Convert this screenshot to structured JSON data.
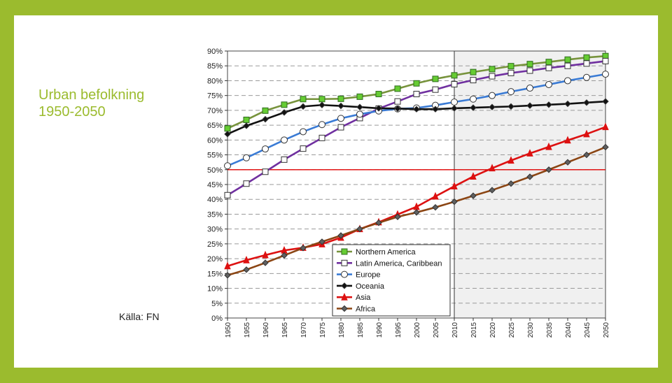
{
  "slide": {
    "title_line1": "Urban befolkning",
    "title_line2": "1950-2050",
    "source": "Källa: FN"
  },
  "colors": {
    "frame": "#9bbb2e",
    "title": "#9bbb2e",
    "threshold": "#e00000",
    "forecast_shade": "#f0f0f0"
  },
  "chart_data": {
    "type": "line",
    "title": "",
    "xlabel": "",
    "ylabel": "",
    "x": [
      1950,
      1955,
      1960,
      1965,
      1970,
      1975,
      1980,
      1985,
      1990,
      1995,
      2000,
      2005,
      2010,
      2015,
      2020,
      2025,
      2030,
      2035,
      2040,
      2045,
      2050
    ],
    "ylim": [
      0,
      90
    ],
    "yticks": [
      "0%",
      "5%",
      "10%",
      "15%",
      "20%",
      "25%",
      "30%",
      "35%",
      "40%",
      "45%",
      "50%",
      "55%",
      "60%",
      "65%",
      "70%",
      "75%",
      "80%",
      "85%",
      "90%"
    ],
    "grid": true,
    "threshold_line": 50,
    "forecast_from": 2010,
    "legend_position": "bottom-center",
    "series": [
      {
        "name": "Northern America",
        "color": "#77933c",
        "marker": "square-filled",
        "marker_fill": "#66cc33",
        "values": [
          63.9,
          66.8,
          69.9,
          71.9,
          73.8,
          73.8,
          73.9,
          74.6,
          75.5,
          77.3,
          79.1,
          80.6,
          81.8,
          82.9,
          83.9,
          84.9,
          85.6,
          86.3,
          87.1,
          87.8,
          88.3
        ]
      },
      {
        "name": "Latin America, Caribbean",
        "color": "#7030a0",
        "marker": "square-open",
        "marker_fill": "#ffffff",
        "values": [
          41.4,
          45.3,
          49.3,
          53.4,
          57.1,
          60.7,
          64.3,
          67.4,
          70.6,
          73.0,
          75.5,
          77.0,
          78.8,
          80.2,
          81.5,
          82.6,
          83.4,
          84.3,
          85.0,
          85.8,
          86.6
        ]
      },
      {
        "name": "Europe",
        "color": "#3a7bd5",
        "marker": "circle-open",
        "marker_fill": "#ffffff",
        "values": [
          51.3,
          54.0,
          57.0,
          60.0,
          62.8,
          65.2,
          67.3,
          68.7,
          69.8,
          70.5,
          70.8,
          71.7,
          72.8,
          73.8,
          75.0,
          76.3,
          77.5,
          78.7,
          80.0,
          81.1,
          82.2
        ]
      },
      {
        "name": "Oceania",
        "color": "#111111",
        "marker": "diamond",
        "marker_fill": "#111111",
        "values": [
          62.0,
          64.8,
          67.0,
          69.3,
          71.3,
          71.8,
          71.5,
          71.1,
          70.7,
          70.6,
          70.4,
          70.4,
          70.7,
          70.9,
          71.1,
          71.3,
          71.6,
          71.9,
          72.2,
          72.6,
          73.0
        ]
      },
      {
        "name": "Asia",
        "color": "#dd1111",
        "marker": "triangle",
        "marker_fill": "#dd1111",
        "values": [
          17.5,
          19.5,
          21.2,
          22.8,
          23.7,
          24.9,
          27.1,
          30.0,
          32.3,
          34.9,
          37.5,
          41.0,
          44.4,
          47.7,
          50.5,
          53.1,
          55.5,
          57.7,
          59.9,
          62.0,
          64.4
        ]
      },
      {
        "name": "Africa",
        "color": "#8b4513",
        "marker": "diamond",
        "marker_fill": "#606060",
        "values": [
          14.4,
          16.3,
          18.6,
          21.1,
          23.6,
          25.7,
          27.8,
          30.0,
          32.1,
          34.1,
          35.6,
          37.3,
          39.2,
          41.2,
          43.1,
          45.3,
          47.6,
          50.0,
          52.5,
          55.0,
          57.6
        ]
      }
    ]
  }
}
